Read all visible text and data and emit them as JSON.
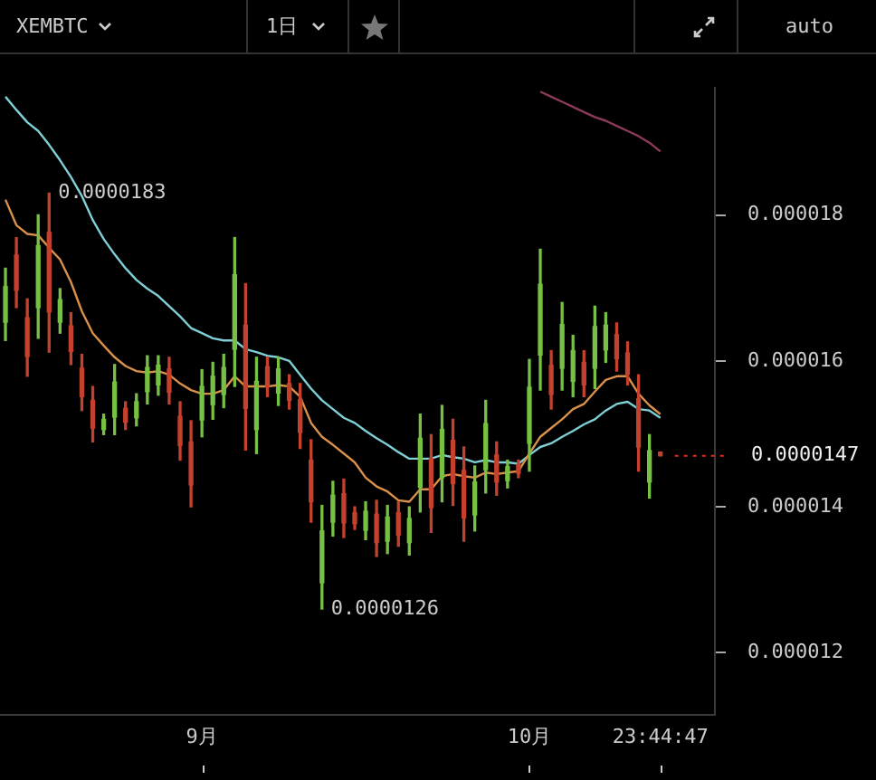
{
  "chart_data": {
    "type": "candlestick",
    "title": "XEMBTC",
    "annotations": [
      "1日",
      "auto",
      "0.0000183",
      "0.0000126"
    ],
    "categories": [
      null,
      null,
      null,
      null,
      null,
      null,
      null,
      null,
      null,
      null,
      null,
      null,
      null,
      null,
      null,
      null,
      null,
      null,
      "9月",
      null,
      null,
      null,
      null,
      null,
      null,
      null,
      null,
      null,
      null,
      null,
      null,
      null,
      null,
      null,
      null,
      null,
      null,
      null,
      null,
      null,
      null,
      null,
      null,
      null,
      null,
      null,
      null,
      null,
      "10月",
      null,
      null,
      null,
      null,
      null,
      null,
      null,
      null,
      null,
      null,
      null,
      "23:44:47"
    ],
    "ohlc": [
      [
        1.653e-05,
        1.727e-05,
        1.628e-05,
        1.702e-05
      ],
      [
        1.745e-05,
        1.769e-05,
        1.673e-05,
        1.697e-05
      ],
      [
        1.659e-05,
        1.685e-05,
        1.579e-05,
        1.606e-05
      ],
      [
        1.673e-05,
        1.8e-05,
        1.631e-05,
        1.758e-05
      ],
      [
        1.776e-05,
        1.83e-05,
        1.612e-05,
        1.667e-05
      ],
      [
        1.653e-05,
        1.699e-05,
        1.638e-05,
        1.684e-05
      ],
      [
        1.648e-05,
        1.666e-05,
        1.595e-05,
        1.613e-05
      ],
      [
        1.59e-05,
        1.609e-05,
        1.532e-05,
        1.551e-05
      ],
      [
        1.546e-05,
        1.565e-05,
        1.489e-05,
        1.508e-05
      ],
      [
        1.506e-05,
        1.527e-05,
        1.499e-05,
        1.52e-05
      ],
      [
        1.523e-05,
        1.595e-05,
        1.499e-05,
        1.571e-05
      ],
      [
        1.535e-05,
        1.544e-05,
        1.506e-05,
        1.516e-05
      ],
      [
        1.522e-05,
        1.555e-05,
        1.511e-05,
        1.544e-05
      ],
      [
        1.558e-05,
        1.607e-05,
        1.541e-05,
        1.591e-05
      ],
      [
        1.567e-05,
        1.607e-05,
        1.553e-05,
        1.594e-05
      ],
      [
        1.589e-05,
        1.605e-05,
        1.541e-05,
        1.557e-05
      ],
      [
        1.524e-05,
        1.544e-05,
        1.464e-05,
        1.484e-05
      ],
      [
        1.489e-05,
        1.518e-05,
        1.4e-05,
        1.43e-05
      ],
      [
        1.519e-05,
        1.588e-05,
        1.496e-05,
        1.565e-05
      ],
      [
        1.54e-05,
        1.598e-05,
        1.52e-05,
        1.579e-05
      ],
      [
        1.554e-05,
        1.609e-05,
        1.536e-05,
        1.591e-05
      ],
      [
        1.616e-05,
        1.769e-05,
        1.565e-05,
        1.718e-05
      ],
      [
        1.649e-05,
        1.706e-05,
        1.478e-05,
        1.535e-05
      ],
      [
        1.506e-05,
        1.605e-05,
        1.473e-05,
        1.572e-05
      ],
      [
        1.592e-05,
        1.605e-05,
        1.551e-05,
        1.565e-05
      ],
      [
        1.556e-05,
        1.605e-05,
        1.539e-05,
        1.589e-05
      ],
      [
        1.569e-05,
        1.581e-05,
        1.534e-05,
        1.546e-05
      ],
      [
        1.547e-05,
        1.569e-05,
        1.48e-05,
        1.502e-05
      ],
      [
        1.464e-05,
        1.492e-05,
        1.379e-05,
        1.407e-05
      ],
      [
        1.296e-05,
        1.402e-05,
        1.26e-05,
        1.367e-05
      ],
      [
        1.379e-05,
        1.435e-05,
        1.36e-05,
        1.416e-05
      ],
      [
        1.418e-05,
        1.438e-05,
        1.358e-05,
        1.378e-05
      ],
      [
        1.392e-05,
        1.4e-05,
        1.369e-05,
        1.377e-05
      ],
      [
        1.368e-05,
        1.407e-05,
        1.355e-05,
        1.394e-05
      ],
      [
        1.39e-05,
        1.409e-05,
        1.332e-05,
        1.351e-05
      ],
      [
        1.353e-05,
        1.402e-05,
        1.336e-05,
        1.386e-05
      ],
      [
        1.392e-05,
        1.407e-05,
        1.346e-05,
        1.361e-05
      ],
      [
        1.351e-05,
        1.4e-05,
        1.334e-05,
        1.384e-05
      ],
      [
        1.427e-05,
        1.527e-05,
        1.393e-05,
        1.494e-05
      ],
      [
        1.466e-05,
        1.499e-05,
        1.365e-05,
        1.399e-05
      ],
      [
        1.44e-05,
        1.539e-05,
        1.407e-05,
        1.506e-05
      ],
      [
        1.491e-05,
        1.52e-05,
        1.402e-05,
        1.432e-05
      ],
      [
        1.45e-05,
        1.482e-05,
        1.353e-05,
        1.385e-05
      ],
      [
        1.389e-05,
        1.456e-05,
        1.367e-05,
        1.434e-05
      ],
      [
        1.451e-05,
        1.546e-05,
        1.419e-05,
        1.514e-05
      ],
      [
        1.471e-05,
        1.489e-05,
        1.416e-05,
        1.434e-05
      ],
      [
        1.436e-05,
        1.464e-05,
        1.426e-05,
        1.455e-05
      ],
      [
        1.458e-05,
        1.464e-05,
        1.44e-05,
        1.446e-05
      ],
      [
        1.487e-05,
        1.602e-05,
        1.449e-05,
        1.564e-05
      ],
      [
        1.608e-05,
        1.753e-05,
        1.56e-05,
        1.705e-05
      ],
      [
        1.594e-05,
        1.614e-05,
        1.534e-05,
        1.554e-05
      ],
      [
        1.59e-05,
        1.68e-05,
        1.56e-05,
        1.65e-05
      ],
      [
        1.572e-05,
        1.635e-05,
        1.551e-05,
        1.614e-05
      ],
      [
        1.598e-05,
        1.614e-05,
        1.551e-05,
        1.567e-05
      ],
      [
        1.59e-05,
        1.675e-05,
        1.562e-05,
        1.647e-05
      ],
      [
        1.615e-05,
        1.666e-05,
        1.598e-05,
        1.649e-05
      ],
      [
        1.636e-05,
        1.652e-05,
        1.586e-05,
        1.603e-05
      ],
      [
        1.611e-05,
        1.626e-05,
        1.567e-05,
        1.582e-05
      ],
      [
        1.548e-05,
        1.581e-05,
        1.449e-05,
        1.482e-05
      ],
      [
        1.434e-05,
        1.499e-05,
        1.412e-05,
        1.477e-05
      ],
      [
        1.475e-05,
        1.475e-05,
        1.47e-05,
        1.47e-05
      ]
    ],
    "colors": [
      "#76c043",
      "#c4412e",
      "#c4412e",
      "#76c043",
      "#c4412e",
      "#76c043",
      "#c4412e",
      "#c4412e",
      "#c4412e",
      "#76c043",
      "#76c043",
      "#c4412e",
      "#76c043",
      "#76c043",
      "#76c043",
      "#c4412e",
      "#c4412e",
      "#c4412e",
      "#76c043",
      "#76c043",
      "#76c043",
      "#76c043",
      "#c4412e",
      "#76c043",
      "#c4412e",
      "#76c043",
      "#c4412e",
      "#c4412e",
      "#c4412e",
      "#76c043",
      "#76c043",
      "#c4412e",
      "#c4412e",
      "#76c043",
      "#c4412e",
      "#76c043",
      "#c4412e",
      "#76c043",
      "#76c043",
      "#c4412e",
      "#76c043",
      "#c4412e",
      "#c4412e",
      "#76c043",
      "#76c043",
      "#c4412e",
      "#76c043",
      "#c4412e",
      "#76c043",
      "#76c043",
      "#c4412e",
      "#76c043",
      "#76c043",
      "#c4412e",
      "#76c043",
      "#76c043",
      "#c4412e",
      "#c4412e",
      "#c4412e",
      "#76c043",
      "#c4412e"
    ],
    "series": [
      {
        "type": "line",
        "color": "#d9904a",
        "values": [
          1.821e-05,
          1.786e-05,
          1.774e-05,
          1.772e-05,
          1.755e-05,
          1.739e-05,
          1.708e-05,
          1.668e-05,
          1.638e-05,
          1.621e-05,
          1.605e-05,
          1.593e-05,
          1.586e-05,
          1.584e-05,
          1.586e-05,
          1.581e-05,
          1.569e-05,
          1.56e-05,
          1.555e-05,
          1.555e-05,
          1.56e-05,
          1.579e-05,
          1.565e-05,
          1.565e-05,
          1.565e-05,
          1.567e-05,
          1.565e-05,
          1.551e-05,
          1.515e-05,
          1.496e-05,
          1.485e-05,
          1.473e-05,
          1.461e-05,
          1.44e-05,
          1.428e-05,
          1.421e-05,
          1.409e-05,
          1.407e-05,
          1.424e-05,
          1.424e-05,
          1.442e-05,
          1.445e-05,
          1.442e-05,
          1.44e-05,
          1.447e-05,
          1.445e-05,
          1.447e-05,
          1.449e-05,
          1.473e-05,
          1.496e-05,
          1.508e-05,
          1.52e-05,
          1.534e-05,
          1.541e-05,
          1.558e-05,
          1.574e-05,
          1.579e-05,
          1.579e-05,
          1.555e-05,
          1.539e-05,
          1.527e-05
        ]
      },
      {
        "type": "line",
        "color": "#7fcfd6",
        "values": [
          1.962e-05,
          1.944e-05,
          1.927e-05,
          1.915e-05,
          1.896e-05,
          1.875e-05,
          1.852e-05,
          1.826e-05,
          1.793e-05,
          1.767e-05,
          1.746e-05,
          1.727e-05,
          1.711e-05,
          1.699e-05,
          1.689e-05,
          1.675e-05,
          1.661e-05,
          1.645e-05,
          1.638e-05,
          1.631e-05,
          1.628e-05,
          1.628e-05,
          1.616e-05,
          1.612e-05,
          1.607e-05,
          1.605e-05,
          1.6e-05,
          1.581e-05,
          1.562e-05,
          1.546e-05,
          1.534e-05,
          1.522e-05,
          1.515e-05,
          1.504e-05,
          1.494e-05,
          1.485e-05,
          1.475e-05,
          1.466e-05,
          1.466e-05,
          1.466e-05,
          1.471e-05,
          1.468e-05,
          1.466e-05,
          1.461e-05,
          1.464e-05,
          1.461e-05,
          1.461e-05,
          1.459e-05,
          1.471e-05,
          1.482e-05,
          1.487e-05,
          1.496e-05,
          1.504e-05,
          1.513e-05,
          1.52e-05,
          1.532e-05,
          1.541e-05,
          1.544e-05,
          1.534e-05,
          1.532e-05,
          1.522e-05
        ]
      },
      {
        "type": "line",
        "color": "#8a3b5c",
        "values": [
          null,
          null,
          null,
          null,
          null,
          null,
          null,
          null,
          null,
          null,
          null,
          null,
          null,
          null,
          null,
          null,
          null,
          null,
          null,
          null,
          null,
          null,
          null,
          null,
          null,
          null,
          null,
          null,
          null,
          null,
          null,
          null,
          null,
          null,
          null,
          null,
          null,
          null,
          null,
          null,
          null,
          null,
          null,
          null,
          null,
          null,
          null,
          null,
          null,
          1.969e-05,
          1.962e-05,
          1.955e-05,
          1.948e-05,
          1.941e-05,
          1.934e-05,
          1.929e-05,
          1.922e-05,
          1.915e-05,
          1.908e-05,
          1.899e-05,
          1.887e-05
        ]
      }
    ],
    "ylim": [
      1.115e-05,
      1.974e-05
    ],
    "yticks": [
      {
        "value": 1.2e-05,
        "label": "0.000012"
      },
      {
        "value": 1.4e-05,
        "label": "0.000014"
      },
      {
        "value": 1.6e-05,
        "label": "0.000016"
      },
      {
        "value": 1.8e-05,
        "label": "0.000018"
      }
    ],
    "ref_lines": [
      {
        "axis": "y",
        "value": 1.47e-05,
        "label": "0.0000147",
        "color": "#e0301e",
        "line_style": "dotted"
      }
    ],
    "grid": false,
    "legend": false
  }
}
